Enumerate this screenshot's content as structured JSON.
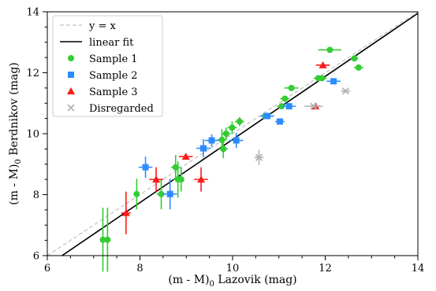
{
  "chart_data": {
    "type": "scatter",
    "xlabel_main": "(m - M)",
    "xlabel_sub": "0",
    "xlabel_rest": " Lazovik (mag)",
    "ylabel_main": "(m - M)",
    "ylabel_sub": "0",
    "ylabel_rest": " Berdnikov (mag)",
    "xlim": [
      6,
      14
    ],
    "ylim": [
      6,
      14
    ],
    "x_ticks": [
      6,
      8,
      10,
      12,
      14
    ],
    "y_ticks": [
      6,
      8,
      10,
      12,
      14
    ],
    "x_tick_labels": [
      "6",
      "8",
      "10",
      "12",
      "14"
    ],
    "y_tick_labels": [
      "6",
      "8",
      "10",
      "12",
      "14"
    ],
    "grid": false,
    "legend_position": "top-left",
    "legend": {
      "identity": "y = x",
      "fit": "linear fit",
      "s1": "Sample 1",
      "s2": "Sample 2",
      "s3": "Sample 3",
      "dis": "Disregarded"
    },
    "colors": {
      "identity": "#cccccc",
      "fit": "#000000",
      "sample1": "#33cc33",
      "sample2": "#2b8cff",
      "sample3": "#ff1a1a",
      "disregarded": "#b3b3b3"
    },
    "identity_line": {
      "x": [
        6,
        14
      ],
      "y": [
        6,
        14
      ]
    },
    "fit_line": {
      "x": [
        6,
        14
      ],
      "y": [
        5.67,
        13.95
      ]
    },
    "series": [
      {
        "name": "Sample 1",
        "marker": "circle",
        "points": [
          {
            "x": 7.2,
            "y": 6.52,
            "xerr": 0.05,
            "yerr": 1.05
          },
          {
            "x": 7.3,
            "y": 6.52,
            "xerr": 0.05,
            "yerr": 1.05
          },
          {
            "x": 7.93,
            "y": 8.02,
            "xerr": 0.05,
            "yerr": 0.5
          },
          {
            "x": 8.46,
            "y": 8.02,
            "xerr": 0.1,
            "yerr": 0.5
          },
          {
            "x": 8.77,
            "y": 8.9,
            "xerr": 0.1,
            "yerr": 0.4
          },
          {
            "x": 8.82,
            "y": 8.5,
            "xerr": 0.1,
            "yerr": 0.6
          },
          {
            "x": 8.89,
            "y": 8.5,
            "xerr": 0.05,
            "yerr": 0.4
          },
          {
            "x": 9.77,
            "y": 9.8,
            "xerr": 0.1,
            "yerr": 0.35
          },
          {
            "x": 9.8,
            "y": 9.5,
            "xerr": 0.1,
            "yerr": 0.3
          },
          {
            "x": 9.86,
            "y": 10.0,
            "xerr": 0.1,
            "yerr": 0.2
          },
          {
            "x": 9.99,
            "y": 10.2,
            "xerr": 0.1,
            "yerr": 0.2
          },
          {
            "x": 10.15,
            "y": 10.4,
            "xerr": 0.1,
            "yerr": 0.15
          },
          {
            "x": 10.7,
            "y": 10.58,
            "xerr": 0.05,
            "yerr": 0.1
          },
          {
            "x": 11.06,
            "y": 10.9,
            "xerr": 0.1,
            "yerr": 0.1
          },
          {
            "x": 11.13,
            "y": 11.15,
            "xerr": 0.1,
            "yerr": 0.1
          },
          {
            "x": 11.27,
            "y": 11.5,
            "xerr": 0.15,
            "yerr": 0.05
          },
          {
            "x": 11.85,
            "y": 11.82,
            "xerr": 0.1,
            "yerr": 0.05
          },
          {
            "x": 11.93,
            "y": 11.82,
            "xerr": 0.1,
            "yerr": 0.05
          },
          {
            "x": 12.1,
            "y": 12.75,
            "xerr": 0.25,
            "yerr": 0.05
          },
          {
            "x": 12.63,
            "y": 12.47,
            "xerr": 0.08,
            "yerr": 0.05
          },
          {
            "x": 12.72,
            "y": 12.17,
            "xerr": 0.1,
            "yerr": 0.05
          }
        ]
      },
      {
        "name": "Sample 2",
        "marker": "square",
        "points": [
          {
            "x": 8.12,
            "y": 8.9,
            "xerr": 0.15,
            "yerr": 0.35
          },
          {
            "x": 8.65,
            "y": 8.02,
            "xerr": 0.15,
            "yerr": 0.5
          },
          {
            "x": 9.37,
            "y": 9.52,
            "xerr": 0.15,
            "yerr": 0.3
          },
          {
            "x": 9.55,
            "y": 9.78,
            "xerr": 0.15,
            "yerr": 0.2
          },
          {
            "x": 10.08,
            "y": 9.78,
            "xerr": 0.15,
            "yerr": 0.25
          },
          {
            "x": 10.75,
            "y": 10.58,
            "xerr": 0.15,
            "yerr": 0.1
          },
          {
            "x": 11.02,
            "y": 10.4,
            "xerr": 0.1,
            "yerr": 0.1
          },
          {
            "x": 11.22,
            "y": 10.9,
            "xerr": 0.15,
            "yerr": 0.1
          },
          {
            "x": 12.18,
            "y": 11.72,
            "xerr": 0.15,
            "yerr": 0.05
          }
        ]
      },
      {
        "name": "Sample 3",
        "marker": "triangle",
        "points": [
          {
            "x": 7.7,
            "y": 7.4,
            "xerr": 0.1,
            "yerr": 0.7
          },
          {
            "x": 8.35,
            "y": 8.5,
            "xerr": 0.15,
            "yerr": 0.4
          },
          {
            "x": 8.99,
            "y": 9.25,
            "xerr": 0.15,
            "yerr": 0.1
          },
          {
            "x": 9.32,
            "y": 8.5,
            "xerr": 0.15,
            "yerr": 0.4
          },
          {
            "x": 11.79,
            "y": 10.9,
            "xerr": 0.1,
            "yerr": 0.05
          },
          {
            "x": 11.95,
            "y": 12.25,
            "xerr": 0.15,
            "yerr": 0.05
          }
        ]
      },
      {
        "name": "Disregarded",
        "marker": "x",
        "points": [
          {
            "x": 10.57,
            "y": 9.22,
            "xerr": 0.1,
            "yerr": 0.25
          },
          {
            "x": 11.75,
            "y": 10.9,
            "xerr": 0.2,
            "yerr": 0.05
          },
          {
            "x": 12.44,
            "y": 11.4,
            "xerr": 0.1,
            "yerr": 0.05
          }
        ]
      }
    ]
  }
}
